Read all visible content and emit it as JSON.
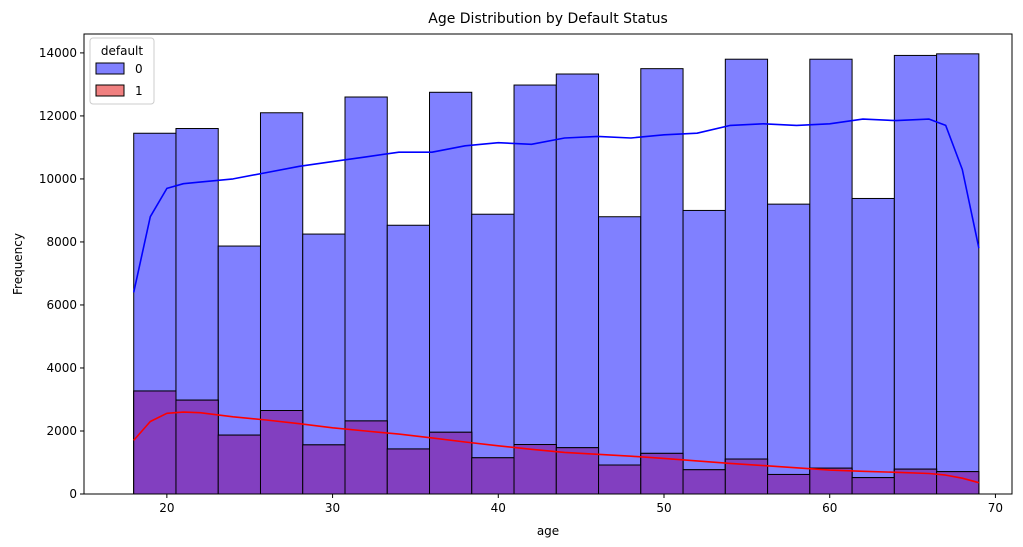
{
  "chart_data": {
    "type": "bar",
    "subtype": "overlapping-histogram-with-kde",
    "title": "Age Distribution by Default Status",
    "xlabel": "age",
    "ylabel": "Frequency",
    "xlim": [
      15,
      71
    ],
    "ylim": [
      0,
      14600
    ],
    "x_ticks": [
      20,
      30,
      40,
      50,
      60,
      70
    ],
    "y_ticks": [
      0,
      2000,
      4000,
      6000,
      8000,
      10000,
      12000,
      14000
    ],
    "grid": false,
    "legend": {
      "title": "default",
      "placement": "top-left"
    },
    "bin_edges": [
      18,
      20.55,
      23.1,
      25.65,
      28.2,
      30.75,
      33.3,
      35.85,
      38.4,
      40.95,
      43.5,
      46.05,
      48.6,
      51.15,
      53.7,
      56.25,
      58.8,
      61.35,
      63.9,
      66.45,
      69
    ],
    "series": [
      {
        "name": "0",
        "bar_color": "#8080ff",
        "line_color": "#0000ff",
        "counts": [
          11450,
          11600,
          7870,
          12100,
          8250,
          12600,
          8530,
          12750,
          8880,
          12980,
          13330,
          8800,
          13500,
          9000,
          13800,
          9200,
          13800,
          9380,
          13920,
          13970
        ],
        "kde": {
          "x": [
            18,
            19,
            20,
            21,
            22,
            24,
            26,
            28,
            30,
            32,
            34,
            36,
            38,
            40,
            42,
            44,
            46,
            48,
            50,
            52,
            54,
            56,
            58,
            60,
            62,
            64,
            66,
            67,
            68,
            69
          ],
          "y": [
            6400,
            8800,
            9700,
            9850,
            9900,
            10000,
            10200,
            10400,
            10550,
            10700,
            10850,
            10850,
            11050,
            11150,
            11100,
            11300,
            11350,
            11300,
            11400,
            11450,
            11700,
            11750,
            11700,
            11750,
            11900,
            11850,
            11900,
            11700,
            10300,
            7800
          ]
        }
      },
      {
        "name": "1",
        "bar_color": "#f08080",
        "line_color": "#ff0000",
        "counts": [
          3270,
          2980,
          1870,
          2650,
          1560,
          2320,
          1430,
          1960,
          1150,
          1570,
          1470,
          920,
          1290,
          770,
          1110,
          620,
          820,
          520,
          790,
          710
        ],
        "kde": {
          "x": [
            18,
            19,
            20,
            21,
            22,
            24,
            26,
            28,
            30,
            32,
            34,
            36,
            38,
            40,
            42,
            44,
            46,
            48,
            50,
            52,
            54,
            56,
            58,
            60,
            62,
            64,
            66,
            67,
            68,
            69
          ],
          "y": [
            1700,
            2300,
            2560,
            2600,
            2580,
            2450,
            2350,
            2230,
            2100,
            2000,
            1900,
            1780,
            1650,
            1530,
            1420,
            1320,
            1260,
            1200,
            1130,
            1050,
            970,
            900,
            830,
            760,
            720,
            690,
            650,
            600,
            500,
            360
          ]
        }
      }
    ]
  }
}
